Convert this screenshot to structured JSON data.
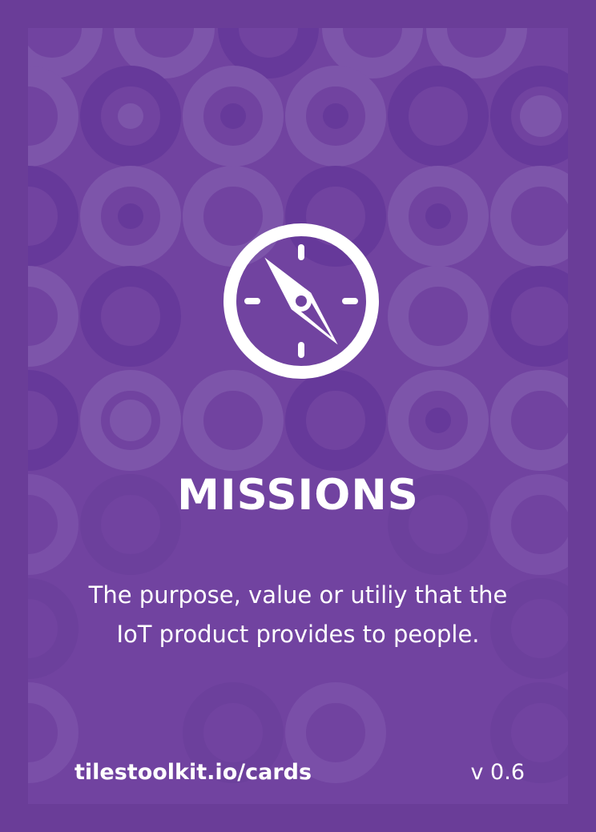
{
  "card": {
    "title": "MISSIONS",
    "description_lines": [
      "The purpose, value or utiliy that the",
      "IoT product provides to people."
    ],
    "footer": {
      "url": "tilestoolkit.io/cards",
      "version": "v 0.6"
    },
    "icon": "compass-icon",
    "colors": {
      "border": "#6a3d98",
      "background": "#7143a0",
      "text": "#ffffff"
    }
  }
}
